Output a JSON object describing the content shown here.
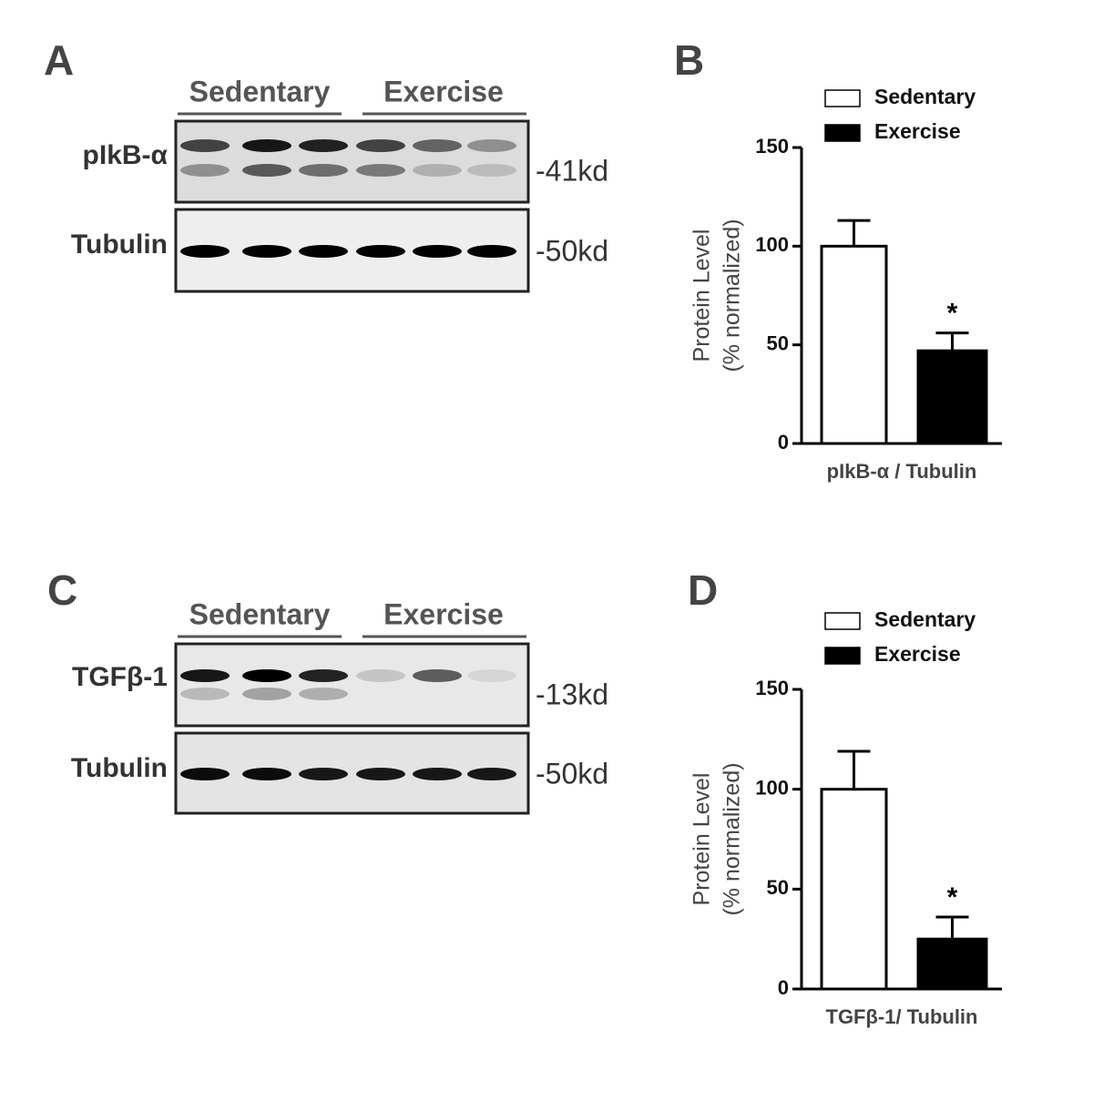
{
  "panel_labels": [
    "A",
    "B",
    "C",
    "D"
  ],
  "blots": [
    {
      "groups": [
        "Sedentary",
        "Exercise"
      ],
      "rows": [
        {
          "label": "pIkB-α",
          "size": "-41kd"
        },
        {
          "label": "Tubulin",
          "size": "-50kd"
        }
      ]
    },
    {
      "groups": [
        "Sedentary",
        "Exercise"
      ],
      "rows": [
        {
          "label": "TGFβ-1",
          "size": "-13kd"
        },
        {
          "label": "Tubulin",
          "size": "-50kd"
        }
      ]
    }
  ],
  "chart_data": [
    {
      "type": "bar",
      "categories": [
        "pIkB-α / Tubulin"
      ],
      "ylabel": [
        "Protein Level",
        "(% normalized)"
      ],
      "ylim": [
        0,
        150
      ],
      "yticks": [
        0,
        50,
        100,
        150
      ],
      "series": [
        {
          "name": "Sedentary",
          "color": "#ffffff",
          "values": [
            100
          ],
          "errors": [
            13
          ]
        },
        {
          "name": "Exercise",
          "color": "#000000",
          "values": [
            47
          ],
          "errors": [
            9
          ],
          "annotation": "*"
        }
      ]
    },
    {
      "type": "bar",
      "categories": [
        "TGFβ-1/ Tubulin"
      ],
      "ylabel": [
        "Protein Level",
        "(% normalized)"
      ],
      "ylim": [
        0,
        150
      ],
      "yticks": [
        0,
        50,
        100,
        150
      ],
      "series": [
        {
          "name": "Sedentary",
          "color": "#ffffff",
          "values": [
            100
          ],
          "errors": [
            19
          ]
        },
        {
          "name": "Exercise",
          "color": "#000000",
          "values": [
            25
          ],
          "errors": [
            11
          ],
          "annotation": "*"
        }
      ]
    }
  ]
}
